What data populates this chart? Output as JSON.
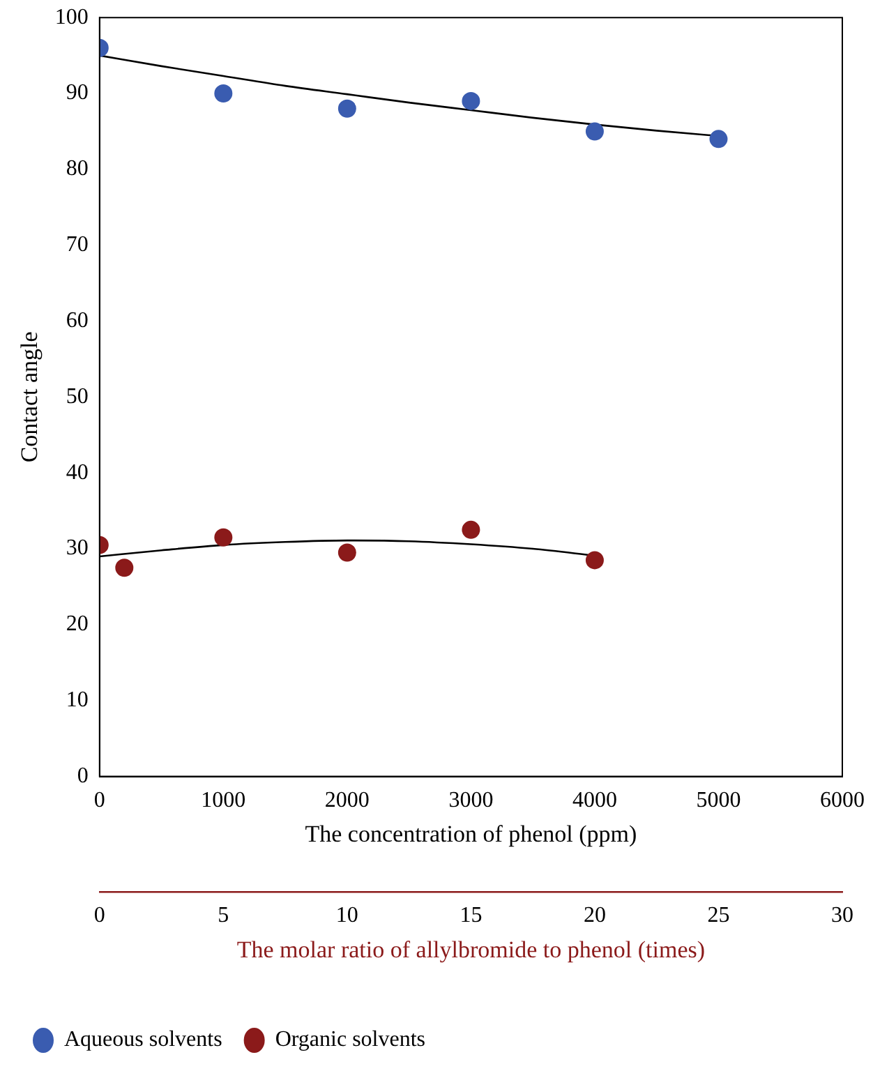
{
  "chart_data": {
    "type": "scatter",
    "xlabel": "The concentration of phenol (ppm)",
    "x2label": "The molar ratio of allylbromide to phenol (times)",
    "ylabel": "Contact angle",
    "xlim": [
      0,
      6000
    ],
    "xticks": [
      0,
      1000,
      2000,
      3000,
      4000,
      5000,
      6000
    ],
    "x2lim": [
      0,
      30
    ],
    "x2ticks": [
      0,
      5,
      10,
      15,
      20,
      25,
      30
    ],
    "ylim": [
      0,
      100
    ],
    "yticks": [
      0,
      10,
      20,
      30,
      40,
      50,
      60,
      70,
      80,
      90,
      100
    ],
    "grid": false,
    "legend": "bottom",
    "marker": "circle",
    "series": [
      {
        "name": "Aqueous solvents",
        "color": "#3a5cb0",
        "x": [
          0,
          1000,
          2000,
          3000,
          4000,
          5000
        ],
        "values": [
          96,
          90,
          88,
          89,
          85,
          84
        ]
      },
      {
        "name": "Organic solvents",
        "color": "#8b1a1a",
        "axis": "x2",
        "x": [
          0,
          1,
          5,
          10,
          15,
          20
        ],
        "values": [
          30.5,
          27.5,
          31.5,
          29.5,
          32.5,
          28.5
        ]
      },
      {
        "type": "line",
        "marker": "none",
        "color": "#000000",
        "x": [
          0,
          500,
          1000,
          1500,
          2000,
          2500,
          3000,
          3500,
          4000,
          4500,
          5000
        ],
        "values": [
          95,
          93.6,
          92.3,
          91,
          89.9,
          88.8,
          87.8,
          86.8,
          85.9,
          85.1,
          84.4
        ]
      },
      {
        "type": "line",
        "marker": "none",
        "color": "#000000",
        "axis": "x2",
        "x": [
          0,
          2.5,
          5,
          7.5,
          10,
          12.5,
          15,
          17.5,
          20
        ],
        "values": [
          29,
          29.8,
          30.5,
          30.9,
          31.1,
          31,
          30.6,
          30,
          29.1
        ]
      }
    ]
  }
}
